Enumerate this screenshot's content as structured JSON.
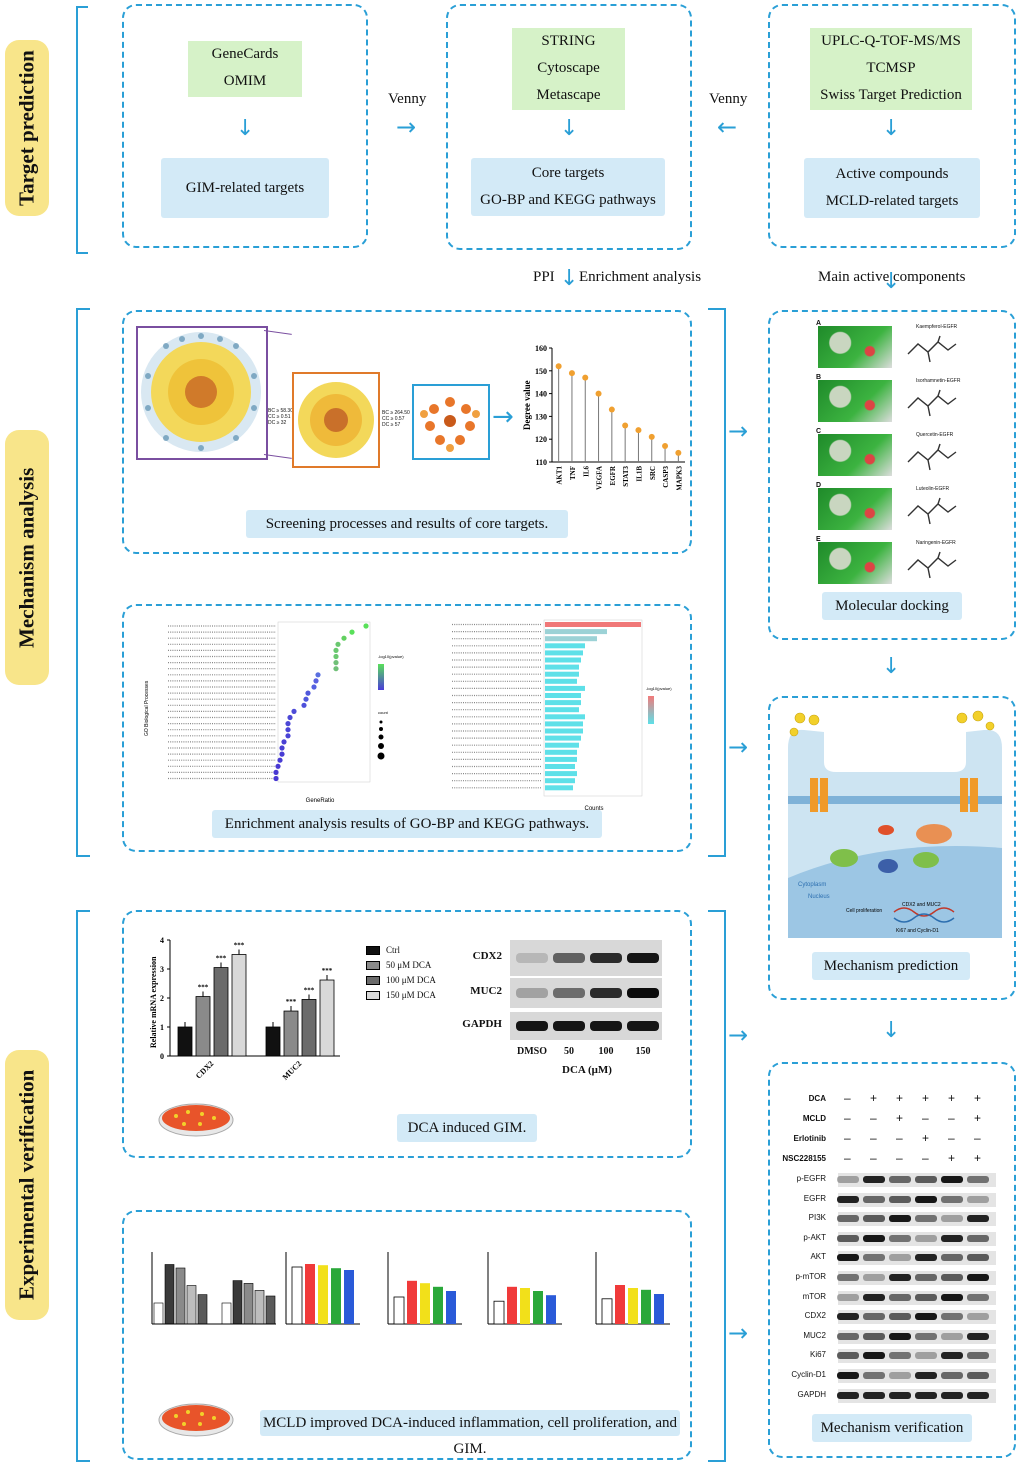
{
  "stages": {
    "target_prediction": "Target prediction",
    "mechanism_analysis": "Mechanism analysis",
    "experimental_verification": "Experimental verification"
  },
  "target": {
    "db_left": [
      "GeneCards",
      "OMIM"
    ],
    "result_left": "GIM-related targets",
    "db_mid": [
      "STRING",
      "Cytoscape",
      "Metascape"
    ],
    "result_mid": [
      "Core targets",
      "GO-BP and KEGG pathways"
    ],
    "db_right": [
      "UPLC-Q-TOF-MS/MS",
      "TCMSP",
      "Swiss Target Prediction"
    ],
    "result_right": [
      "Active compounds",
      "MCLD-related targets"
    ],
    "venny_left": "Venny",
    "venny_right": "Venny",
    "ppi": "PPI",
    "enrichment": "Enrichment analysis",
    "main_active": "Main active components"
  },
  "mechanism": {
    "core_caption": "Screening processes and results of core targets.",
    "network_criteria_1": [
      "BC ≥ 58.30",
      "CC ≥ 0.51",
      "DC ≥ 32"
    ],
    "network_criteria_2": [
      "BC ≥ 264.50",
      "CC ≥ 0.57",
      "DC ≥ 57"
    ],
    "enrich_caption": "Enrichment analysis results of GO-BP and KEGG pathways.",
    "docking_caption": "Molecular docking",
    "docking_labels": [
      "Kaempferol-EGFR",
      "Isorhamnetin-EGFR",
      "Quercetin-EGFR",
      "Luteolin-EGFR",
      "Naringenin-EGFR"
    ],
    "docking_letters": [
      "A",
      "B",
      "C",
      "D",
      "E"
    ],
    "prediction_caption": "Mechanism prediction",
    "cell_labels": [
      "Cytoplasm",
      "Nucleus",
      "Cell proliferation",
      "CDX2 and MUC2",
      "Ki67 and Cyclin-D1"
    ]
  },
  "degree_chart": {
    "ylabel": "Degree value",
    "genes": [
      "AKT1",
      "TNF",
      "IL6",
      "VEGFA",
      "EGFR",
      "STAT3",
      "IL1B",
      "SRC",
      "CASP3",
      "MAPK3"
    ]
  },
  "go_chart": {
    "ylabel": "GO Biological Processes",
    "xlabel": "GeneRatio",
    "legend_color": "-log10(pvalue)",
    "legend_size": "count"
  },
  "kegg_chart": {
    "xlabel": "Counts",
    "legend_color": "-log10(pvalue)"
  },
  "experiment": {
    "dca_caption": "DCA induced GIM.",
    "mcld_caption": "MCLD improved DCA-induced  inflammation, cell proliferation, and GIM.",
    "verify_caption": "Mechanism verification"
  },
  "chart_data": [
    {
      "type": "bar",
      "ylabel": "Relative mRNA expression",
      "categories": [
        "CDX2",
        "MUC2"
      ],
      "ylim": [
        0,
        4
      ],
      "yticks": [
        "0",
        "1",
        "2",
        "3",
        "4"
      ],
      "series": [
        {
          "name": "Ctrl",
          "values": [
            1.0,
            1.0
          ],
          "color": "#111111"
        },
        {
          "name": "50 μM DCA",
          "values": [
            2.05,
            1.55
          ],
          "color": "#8a8a8a"
        },
        {
          "name": "100 μM DCA",
          "values": [
            3.05,
            1.95
          ],
          "color": "#6b6b6b"
        },
        {
          "name": "150 μM DCA",
          "values": [
            3.5,
            2.62
          ],
          "color": "#d9d9d9"
        }
      ],
      "significance": [
        "***",
        "***",
        "***",
        "***",
        "***",
        "***"
      ]
    },
    {
      "type": "line",
      "ylabel": "Degree value",
      "categories": [
        "AKT1",
        "TNF",
        "IL6",
        "VEGFA",
        "EGFR",
        "STAT3",
        "IL1B",
        "SRC",
        "CASP3",
        "MAPK3"
      ],
      "values": [
        152,
        149,
        147,
        140,
        133,
        126,
        124,
        121,
        117,
        114
      ],
      "ylim": [
        110,
        160
      ],
      "yticks": [
        "110",
        "120",
        "130",
        "140",
        "150",
        "160"
      ]
    }
  ],
  "western_blot_1": {
    "rows": [
      "CDX2",
      "MUC2",
      "GAPDH"
    ],
    "lanes": [
      "DMSO",
      "50",
      "100",
      "150"
    ],
    "xlabel": "DCA (μM)"
  },
  "western_blot_2": {
    "treatments": [
      {
        "label": "DCA",
        "signs": [
          "–",
          "+",
          "+",
          "+",
          "+",
          "+"
        ]
      },
      {
        "label": "MCLD",
        "signs": [
          "–",
          "–",
          "+",
          "–",
          "–",
          "+"
        ]
      },
      {
        "label": "Erlotinib",
        "signs": [
          "–",
          "–",
          "–",
          "+",
          "–",
          "–"
        ]
      },
      {
        "label": "NSC228155",
        "signs": [
          "–",
          "–",
          "–",
          "–",
          "+",
          "+"
        ]
      }
    ],
    "rows": [
      "p-EGFR",
      "EGFR",
      "PI3K",
      "p-AKT",
      "AKT",
      "p-mTOR",
      "mTOR",
      "CDX2",
      "MUC2",
      "Ki67",
      "Cyclin-D1",
      "GAPDH"
    ]
  }
}
